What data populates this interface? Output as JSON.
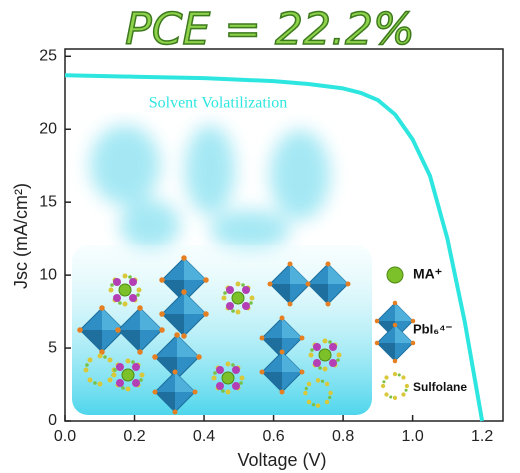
{
  "chart_data": {
    "type": "line",
    "title": "PCE = 22.2%",
    "annotation": "Solvent Volatilization",
    "x_label": "Voltage (V)",
    "y_label": "Jsc (mA/cm²)",
    "legend_items": [
      "MA⁺",
      "PbI₆⁴⁻",
      "Sulfolane"
    ],
    "x": [
      0,
      0.2,
      0.4,
      0.6,
      0.7,
      0.8,
      0.85,
      0.9,
      0.95,
      1.0,
      1.05,
      1.1,
      1.15,
      1.2
    ],
    "series": [
      {
        "color": "#2ee6e0",
        "values": [
          23.7,
          23.6,
          23.5,
          23.3,
          23.1,
          22.8,
          22.5,
          22.0,
          21.0,
          19.3,
          16.8,
          12.5,
          6.8,
          0
        ]
      }
    ],
    "xlim": [
      0,
      1.26
    ],
    "ylim": [
      0,
      25.5
    ],
    "xticks": [
      {
        "value": 0,
        "label": "0.0"
      },
      0.2,
      0.4,
      0.6,
      0.8,
      {
        "value": 1,
        "label": "1.0"
      },
      1.2
    ],
    "yticks": [
      0,
      5,
      10,
      15,
      20,
      25
    ]
  }
}
